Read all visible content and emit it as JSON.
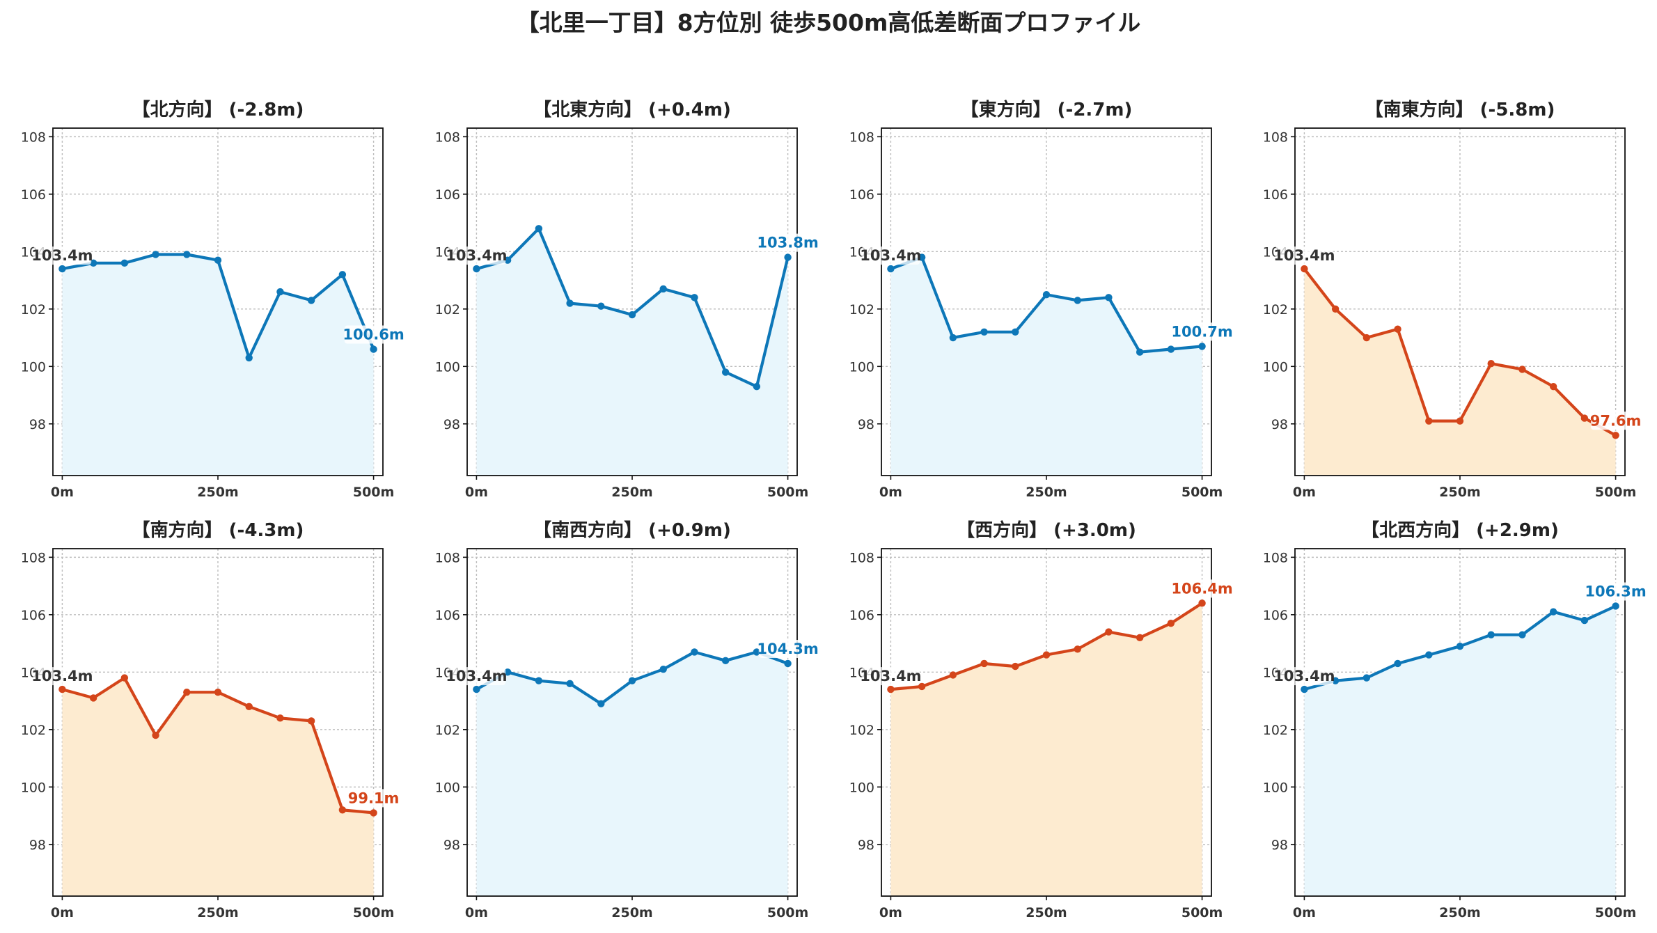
{
  "title": "【北里一丁目】8方位別 徒歩500m高低差断面プロファイル",
  "colors": {
    "down_line": "#d4451a",
    "down_fill": "#fdebd0",
    "up_line": "#0d77b8",
    "up_fill": "#e8f6fc"
  },
  "chart_data": [
    {
      "type": "area",
      "title": "【北方向】 (-2.8m)",
      "trend": "down",
      "x": [
        0,
        50,
        100,
        150,
        200,
        250,
        300,
        350,
        400,
        450,
        500
      ],
      "values": [
        103.4,
        103.6,
        103.6,
        103.9,
        103.9,
        103.7,
        100.3,
        102.6,
        102.3,
        103.2,
        100.6
      ],
      "start_label": "103.4m",
      "end_label": "100.6m",
      "end_color": "#0d77b8",
      "line_color": "#0d77b8",
      "fill_color": "#e8f6fc",
      "x_ticks": [
        0,
        250,
        500
      ],
      "x_tick_labels": [
        "0m",
        "250m",
        "500m"
      ],
      "y_ticks": [
        98,
        100,
        102,
        104,
        106,
        108
      ],
      "y_tick_labels": [
        "98",
        "100",
        "102",
        "104",
        "106",
        "108"
      ],
      "xlim": [
        -15,
        515
      ],
      "ylim": [
        96.2,
        108.3
      ],
      "grid": true
    },
    {
      "type": "area",
      "title": "【北東方向】 (+0.4m)",
      "trend": "up",
      "x": [
        0,
        50,
        100,
        150,
        200,
        250,
        300,
        350,
        400,
        450,
        500
      ],
      "values": [
        103.4,
        103.7,
        104.8,
        102.2,
        102.1,
        101.8,
        102.7,
        102.4,
        99.8,
        99.3,
        103.8
      ],
      "start_label": "103.4m",
      "end_label": "103.8m",
      "end_color": "#0d77b8",
      "line_color": "#0d77b8",
      "fill_color": "#e8f6fc",
      "x_ticks": [
        0,
        250,
        500
      ],
      "x_tick_labels": [
        "0m",
        "250m",
        "500m"
      ],
      "y_ticks": [
        98,
        100,
        102,
        104,
        106,
        108
      ],
      "y_tick_labels": [
        "98",
        "100",
        "102",
        "104",
        "106",
        "108"
      ],
      "xlim": [
        -15,
        515
      ],
      "ylim": [
        96.2,
        108.3
      ],
      "grid": true
    },
    {
      "type": "area",
      "title": "【東方向】 (-2.7m)",
      "trend": "down",
      "x": [
        0,
        50,
        100,
        150,
        200,
        250,
        300,
        350,
        400,
        450,
        500
      ],
      "values": [
        103.4,
        103.8,
        101.0,
        101.2,
        101.2,
        102.5,
        102.3,
        102.4,
        100.5,
        100.6,
        100.7
      ],
      "start_label": "103.4m",
      "end_label": "100.7m",
      "end_color": "#0d77b8",
      "line_color": "#0d77b8",
      "fill_color": "#e8f6fc",
      "x_ticks": [
        0,
        250,
        500
      ],
      "x_tick_labels": [
        "0m",
        "250m",
        "500m"
      ],
      "y_ticks": [
        98,
        100,
        102,
        104,
        106,
        108
      ],
      "y_tick_labels": [
        "98",
        "100",
        "102",
        "104",
        "106",
        "108"
      ],
      "xlim": [
        -15,
        515
      ],
      "ylim": [
        96.2,
        108.3
      ],
      "grid": true
    },
    {
      "type": "area",
      "title": "【南東方向】 (-5.8m)",
      "trend": "down",
      "x": [
        0,
        50,
        100,
        150,
        200,
        250,
        300,
        350,
        400,
        450,
        500
      ],
      "values": [
        103.4,
        102.0,
        101.0,
        101.3,
        98.1,
        98.1,
        100.1,
        99.9,
        99.3,
        98.2,
        97.6
      ],
      "start_label": "103.4m",
      "end_label": "97.6m",
      "end_color": "#d4451a",
      "line_color": "#d4451a",
      "fill_color": "#fdebd0",
      "x_ticks": [
        0,
        250,
        500
      ],
      "x_tick_labels": [
        "0m",
        "250m",
        "500m"
      ],
      "y_ticks": [
        98,
        100,
        102,
        104,
        106,
        108
      ],
      "y_tick_labels": [
        "98",
        "100",
        "102",
        "104",
        "106",
        "108"
      ],
      "xlim": [
        -15,
        515
      ],
      "ylim": [
        96.2,
        108.3
      ],
      "grid": true
    },
    {
      "type": "area",
      "title": "【南方向】 (-4.3m)",
      "trend": "down",
      "x": [
        0,
        50,
        100,
        150,
        200,
        250,
        300,
        350,
        400,
        450,
        500
      ],
      "values": [
        103.4,
        103.1,
        103.8,
        101.8,
        103.3,
        103.3,
        102.8,
        102.4,
        102.3,
        99.2,
        99.1
      ],
      "start_label": "103.4m",
      "end_label": "99.1m",
      "end_color": "#d4451a",
      "line_color": "#d4451a",
      "fill_color": "#fdebd0",
      "x_ticks": [
        0,
        250,
        500
      ],
      "x_tick_labels": [
        "0m",
        "250m",
        "500m"
      ],
      "y_ticks": [
        98,
        100,
        102,
        104,
        106,
        108
      ],
      "y_tick_labels": [
        "98",
        "100",
        "102",
        "104",
        "106",
        "108"
      ],
      "xlim": [
        -15,
        515
      ],
      "ylim": [
        96.2,
        108.3
      ],
      "grid": true
    },
    {
      "type": "area",
      "title": "【南西方向】 (+0.9m)",
      "trend": "up",
      "x": [
        0,
        50,
        100,
        150,
        200,
        250,
        300,
        350,
        400,
        450,
        500
      ],
      "values": [
        103.4,
        104.0,
        103.7,
        103.6,
        102.9,
        103.7,
        104.1,
        104.7,
        104.4,
        104.7,
        104.3
      ],
      "start_label": "103.4m",
      "end_label": "104.3m",
      "end_color": "#0d77b8",
      "line_color": "#0d77b8",
      "fill_color": "#e8f6fc",
      "x_ticks": [
        0,
        250,
        500
      ],
      "x_tick_labels": [
        "0m",
        "250m",
        "500m"
      ],
      "y_ticks": [
        98,
        100,
        102,
        104,
        106,
        108
      ],
      "y_tick_labels": [
        "98",
        "100",
        "102",
        "104",
        "106",
        "108"
      ],
      "xlim": [
        -15,
        515
      ],
      "ylim": [
        96.2,
        108.3
      ],
      "grid": true
    },
    {
      "type": "area",
      "title": "【西方向】 (+3.0m)",
      "trend": "up",
      "x": [
        0,
        50,
        100,
        150,
        200,
        250,
        300,
        350,
        400,
        450,
        500
      ],
      "values": [
        103.4,
        103.5,
        103.9,
        104.3,
        104.2,
        104.6,
        104.8,
        105.4,
        105.2,
        105.7,
        106.4
      ],
      "start_label": "103.4m",
      "end_label": "106.4m",
      "end_color": "#d4451a",
      "line_color": "#d4451a",
      "fill_color": "#fdebd0",
      "x_ticks": [
        0,
        250,
        500
      ],
      "x_tick_labels": [
        "0m",
        "250m",
        "500m"
      ],
      "y_ticks": [
        98,
        100,
        102,
        104,
        106,
        108
      ],
      "y_tick_labels": [
        "98",
        "100",
        "102",
        "104",
        "106",
        "108"
      ],
      "xlim": [
        -15,
        515
      ],
      "ylim": [
        96.2,
        108.3
      ],
      "grid": true
    },
    {
      "type": "area",
      "title": "【北西方向】 (+2.9m)",
      "trend": "up",
      "x": [
        0,
        50,
        100,
        150,
        200,
        250,
        300,
        350,
        400,
        450,
        500
      ],
      "values": [
        103.4,
        103.7,
        103.8,
        104.3,
        104.6,
        104.9,
        105.3,
        105.3,
        106.1,
        105.8,
        106.3
      ],
      "start_label": "103.4m",
      "end_label": "106.3m",
      "end_color": "#0d77b8",
      "line_color": "#0d77b8",
      "fill_color": "#e8f6fc",
      "x_ticks": [
        0,
        250,
        500
      ],
      "x_tick_labels": [
        "0m",
        "250m",
        "500m"
      ],
      "y_ticks": [
        98,
        100,
        102,
        104,
        106,
        108
      ],
      "y_tick_labels": [
        "98",
        "100",
        "102",
        "104",
        "106",
        "108"
      ],
      "xlim": [
        -15,
        515
      ],
      "ylim": [
        96.2,
        108.3
      ],
      "grid": true
    }
  ]
}
